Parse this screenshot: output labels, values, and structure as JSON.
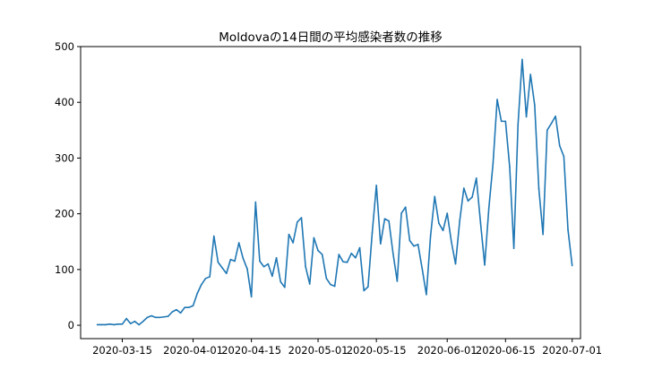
{
  "chart_data": {
    "type": "line",
    "title": "Moldovaの14日間の平均感染者数の推移",
    "xlabel": "",
    "ylabel": "",
    "x_start": "2020-03-09",
    "x_end": "2020-06-29",
    "xlim": [
      "2020-03-05",
      "2020-07-03"
    ],
    "ylim": [
      -24,
      500
    ],
    "x_ticks": [
      "2020-03-15",
      "2020-04-01",
      "2020-04-15",
      "2020-05-01",
      "2020-05-15",
      "2020-06-01",
      "2020-06-15",
      "2020-07-01"
    ],
    "y_ticks": [
      0,
      100,
      200,
      300,
      400,
      500
    ],
    "grid": false,
    "series": [
      {
        "color": "#1f77b4",
        "values": [
          1,
          1,
          1,
          2,
          1,
          2,
          2,
          12,
          3,
          7,
          1,
          7,
          14,
          17,
          14,
          14,
          15,
          16,
          24,
          28,
          22,
          32,
          32,
          35,
          57,
          73,
          84,
          87,
          160,
          113,
          103,
          93,
          118,
          115,
          148,
          120,
          101,
          51,
          221,
          115,
          105,
          110,
          88,
          121,
          78,
          68,
          163,
          148,
          185,
          193,
          105,
          74,
          157,
          134,
          127,
          84,
          73,
          70,
          127,
          114,
          113,
          129,
          121,
          139,
          62,
          69,
          166,
          251,
          146,
          191,
          187,
          129,
          79,
          201,
          212,
          152,
          142,
          145,
          101,
          55,
          160,
          231,
          183,
          170,
          201,
          150,
          110,
          187,
          246,
          223,
          230,
          264,
          184,
          108,
          210,
          290,
          405,
          366,
          366,
          284,
          138,
          360,
          477,
          374,
          450,
          395,
          245,
          163,
          350,
          362,
          375,
          322,
          303,
          171,
          107
        ]
      }
    ]
  }
}
